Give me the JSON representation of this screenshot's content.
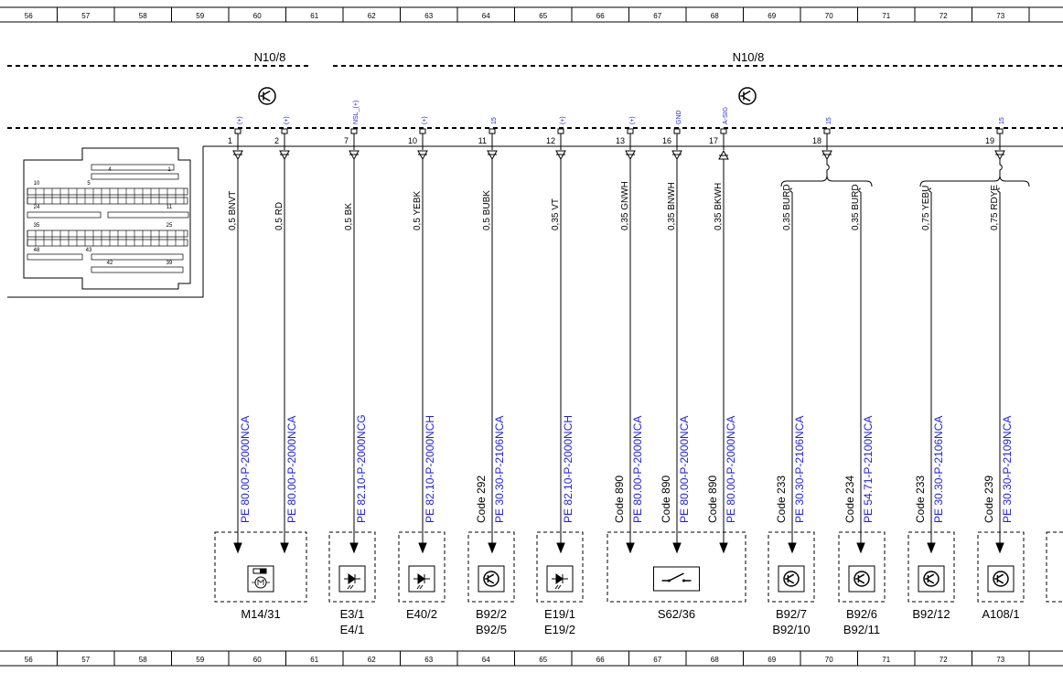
{
  "ruler": [
    "56",
    "57",
    "58",
    "59",
    "60",
    "61",
    "62",
    "63",
    "64",
    "65",
    "66",
    "67",
    "68",
    "69",
    "70",
    "71",
    "72",
    "73"
  ],
  "modules": [
    {
      "label": "N10/8"
    },
    {
      "label": "N10/8"
    }
  ],
  "connector_pins": [
    "4",
    "1",
    "10",
    "5",
    "24",
    "11",
    "35",
    "25",
    "48",
    "43",
    "42",
    "39"
  ],
  "pins": [
    {
      "number": "1",
      "signal": "(+)"
    },
    {
      "number": "2",
      "signal": "(+)"
    },
    {
      "number": "7",
      "signal": "NSL_(+)"
    },
    {
      "number": "10",
      "signal": "(+)"
    },
    {
      "number": "11",
      "signal": "15"
    },
    {
      "number": "12",
      "signal": "(+)"
    },
    {
      "number": "13",
      "signal": "(+)"
    },
    {
      "number": "16",
      "signal": "GND"
    },
    {
      "number": "17",
      "signal": "A-SIG"
    },
    {
      "number": "18",
      "signal": "15"
    },
    {
      "number": "19",
      "signal": "15"
    }
  ],
  "wires": [
    {
      "label": "0,5 BNVT",
      "ref": "PE 80.00-P-2000NCA"
    },
    {
      "label": "0,5 RD",
      "ref": "PE 80.00-P-2000NCA"
    },
    {
      "label": "0,5 BK",
      "ref": "PE 82.10-P-2000NCG"
    },
    {
      "label": "0,5 YEBK",
      "ref": "PE 82.10-P-2000NCH"
    },
    {
      "label": "0,5 BUBK",
      "code": "Code 292",
      "ref": "PE 30.30-P-2106NCA"
    },
    {
      "label": "0,35 VT",
      "ref": "PE 82.10-P-2000NCH"
    },
    {
      "label": "0,35 GNWH",
      "code": "Code 890",
      "ref": "PE 80.00-P-2000NCA"
    },
    {
      "label": "0,35 BNWH",
      "code": "Code 890",
      "ref": "PE 80.00-P-2000NCA"
    },
    {
      "label": "0,35 BKWH",
      "code": "Code 890",
      "ref": "PE 80.00-P-2000NCA"
    },
    {
      "label": "0,35 BURD",
      "code": "Code 233",
      "ref": "PE 30.30-P-2106NCA"
    },
    {
      "label": "0,35 BURD",
      "code": "Code 234",
      "ref": "PE 54.71-P-2100NCA"
    },
    {
      "label": "0,75 YEBU",
      "code": "Code 233",
      "ref": "PE 30.30-P-2106NCA"
    },
    {
      "label": "0,75 RDYE",
      "code": "Code 239",
      "ref": "PE 30.30-P-2109NCA"
    }
  ],
  "components": [
    {
      "labels": [
        "M14/31"
      ]
    },
    {
      "labels": [
        "E3/1",
        "E4/1"
      ]
    },
    {
      "labels": [
        "E40/2"
      ]
    },
    {
      "labels": [
        "B92/2",
        "B92/5"
      ]
    },
    {
      "labels": [
        "E19/1",
        "E19/2"
      ]
    },
    {
      "labels": [
        "S62/36"
      ]
    },
    {
      "labels": [
        "B92/7",
        "B92/10"
      ]
    },
    {
      "labels": [
        "B92/6",
        "B92/11"
      ]
    },
    {
      "labels": [
        "B92/12"
      ]
    },
    {
      "labels": [
        "A108/1"
      ]
    }
  ]
}
